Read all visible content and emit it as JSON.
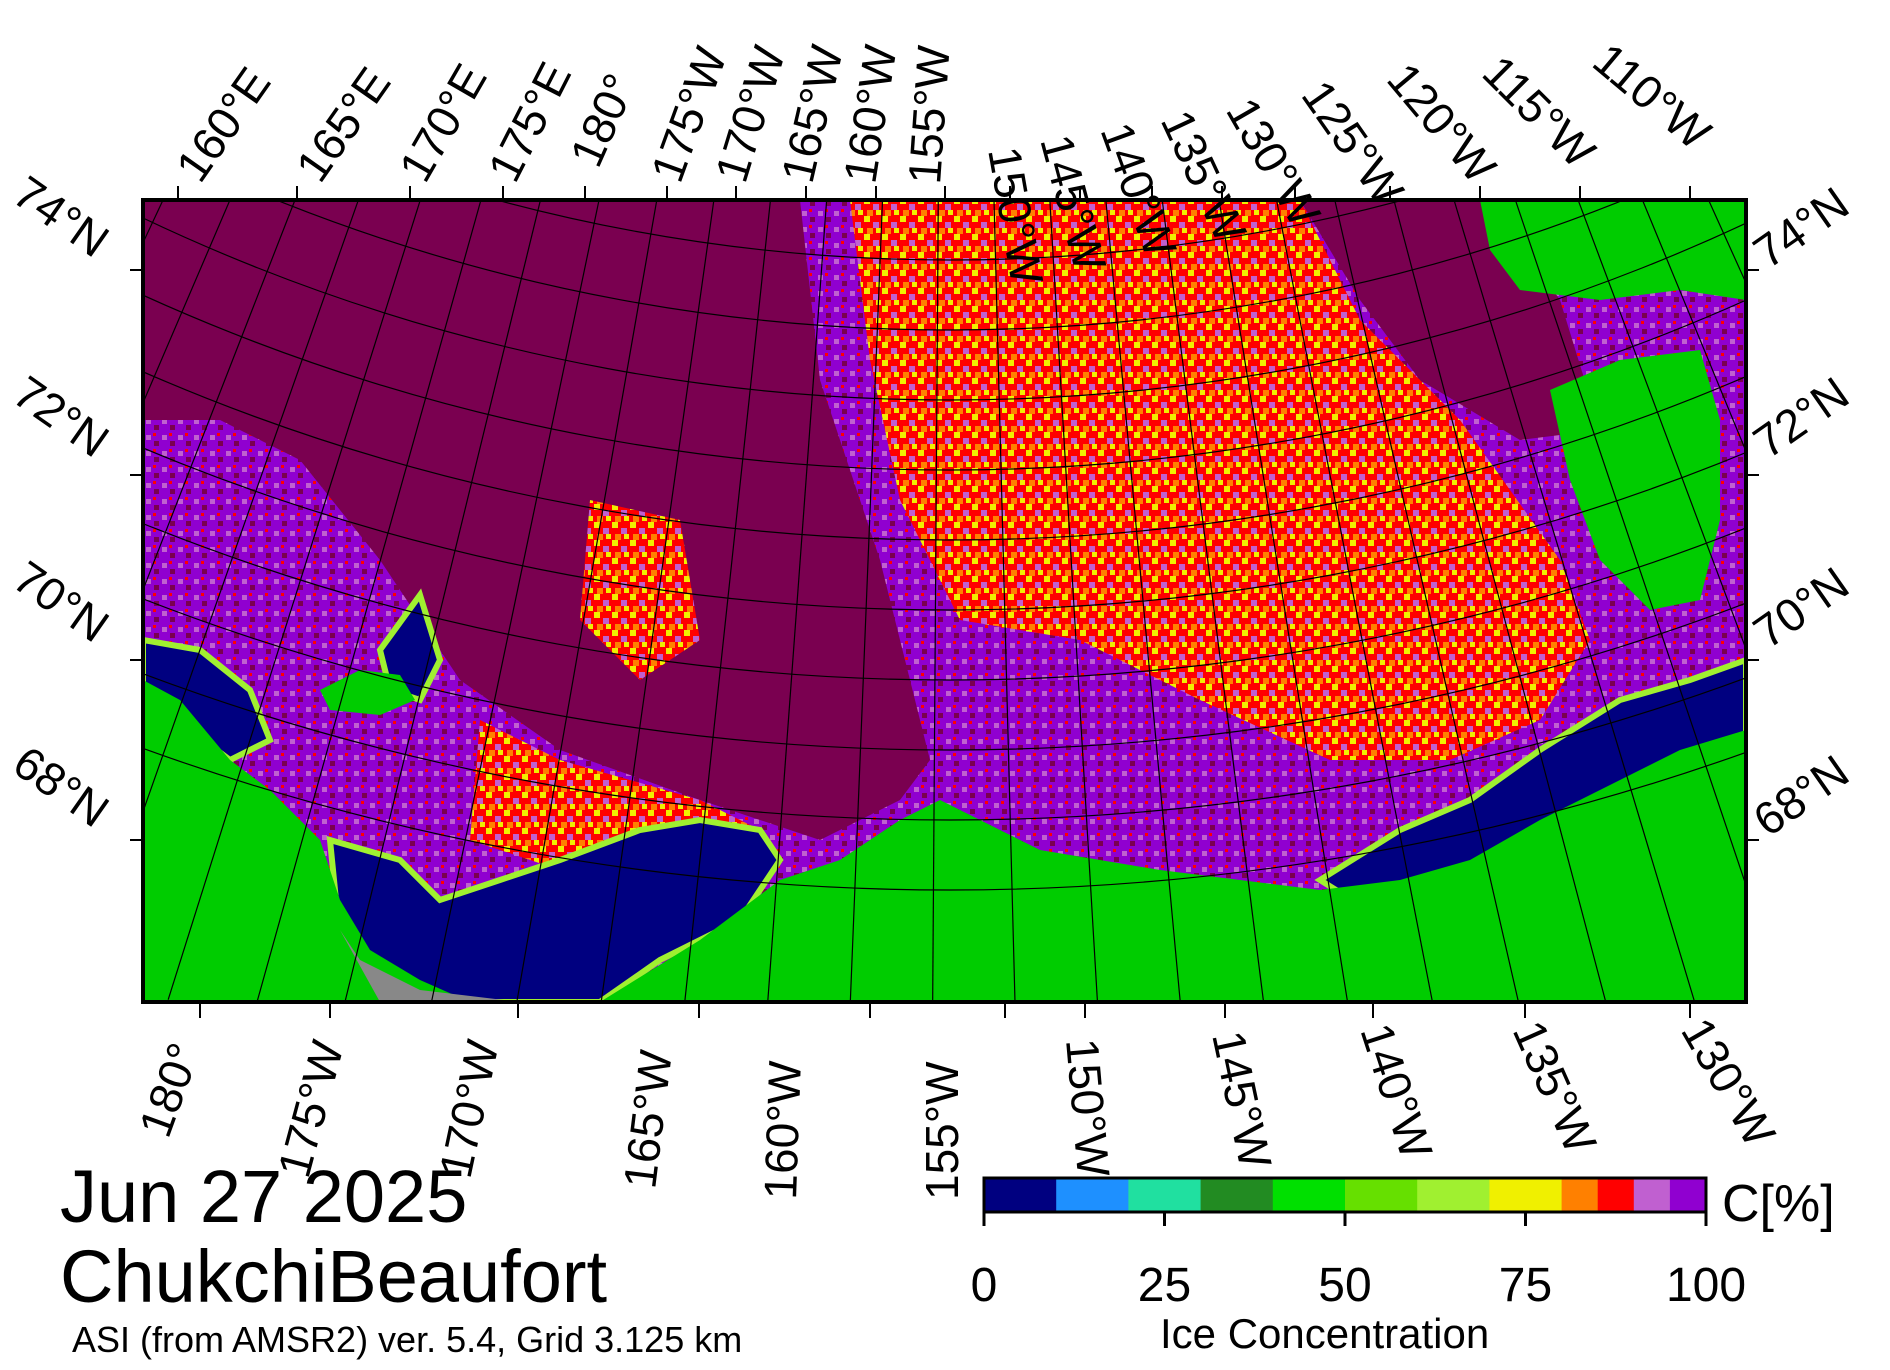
{
  "map": {
    "date": "Jun 27 2025",
    "region": "ChukchiBeaufort",
    "product": "ASI (from AMSR2) ver. 5.4,  Grid 3.125 km",
    "top_lon_labels": [
      "160°E",
      "165°E",
      "170°E",
      "175°E",
      "180°",
      "175°W",
      "170°W",
      "165°W",
      "160°W",
      "155°W",
      "150°W",
      "145°W",
      "140°W",
      "135°W",
      "130°W",
      "125°W",
      "120°W",
      "115°W",
      "110°W"
    ],
    "bottom_lon_labels": [
      "180°",
      "175°W",
      "170°W",
      "165°W",
      "160°W",
      "155°W",
      "150°W",
      "145°W",
      "140°W",
      "135°W",
      "130°W"
    ],
    "lat_labels": [
      "74°N",
      "72°N",
      "70°N",
      "68°N"
    ],
    "colors": {
      "land": "#00cc00",
      "land_masked": "#888888",
      "open_water": "#000080",
      "ice_full": "#7a0050",
      "grid": "#000000"
    }
  },
  "colorbar": {
    "title": "Ice Concentration",
    "unit": "C[%]",
    "tick_labels": [
      "0",
      "25",
      "50",
      "75",
      "100"
    ],
    "ticks": [
      0,
      25,
      50,
      75,
      100
    ],
    "bins": [
      {
        "from": 0,
        "to": 10,
        "color": "#000080"
      },
      {
        "from": 10,
        "to": 20,
        "color": "#1e90ff"
      },
      {
        "from": 20,
        "to": 30,
        "color": "#20e0a0"
      },
      {
        "from": 30,
        "to": 40,
        "color": "#228b22"
      },
      {
        "from": 40,
        "to": 50,
        "color": "#00e000"
      },
      {
        "from": 50,
        "to": 60,
        "color": "#66e000"
      },
      {
        "from": 60,
        "to": 70,
        "color": "#a0f030"
      },
      {
        "from": 70,
        "to": 80,
        "color": "#f0f000"
      },
      {
        "from": 80,
        "to": 85,
        "color": "#ff8000"
      },
      {
        "from": 85,
        "to": 90,
        "color": "#ff0000"
      },
      {
        "from": 90,
        "to": 95,
        "color": "#c060d0"
      },
      {
        "from": 95,
        "to": 100,
        "color": "#9000d0"
      }
    ]
  }
}
